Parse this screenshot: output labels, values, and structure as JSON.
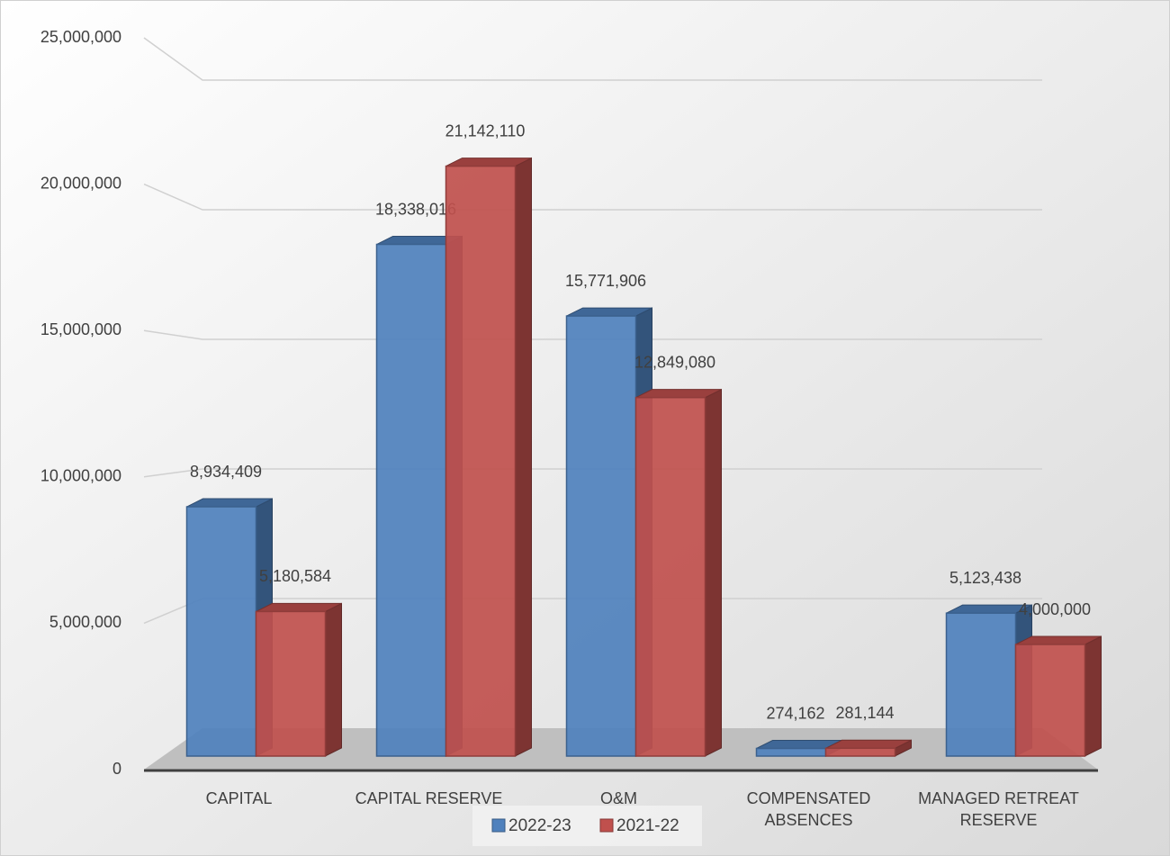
{
  "chart_data": {
    "type": "bar3d",
    "categories": [
      "CAPITAL",
      "CAPITAL RESERVE",
      "O&M",
      "COMPENSATED ABSENCES",
      "MANAGED RETREAT RESERVE"
    ],
    "series": [
      {
        "name": "2022-23",
        "color": "#4f81bd",
        "values": [
          8934409,
          18338016,
          15771906,
          274162,
          5123438
        ],
        "value_labels": [
          "8,934,409",
          "18,338,016",
          "15,771,906",
          "274,162",
          "5,123,438"
        ]
      },
      {
        "name": "2021-22",
        "color": "#c0504d",
        "values": [
          5180584,
          21142110,
          12849080,
          281144,
          4000000
        ],
        "value_labels": [
          "5,180,584",
          "21,142,110",
          "12,849,080",
          "281,144",
          "4,000,000"
        ]
      }
    ],
    "ylim": [
      0,
      25000000
    ],
    "yticks": [
      0,
      {
        "value": 5000000,
        "label": "5,000,000"
      },
      {
        "value": 10000000,
        "label": "10,000,000"
      },
      {
        "value": 15000000,
        "label": "15,000,000"
      },
      {
        "value": 20000000,
        "label": "20,000,000"
      },
      {
        "value": 25000000,
        "label": "25,000,000"
      }
    ],
    "grid": true,
    "legend": "bottom"
  }
}
